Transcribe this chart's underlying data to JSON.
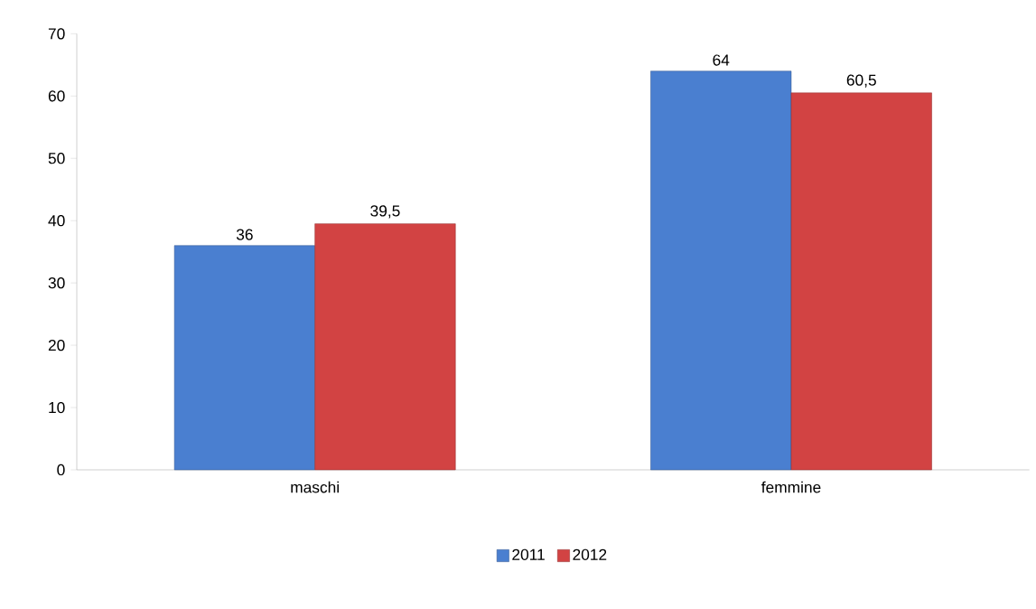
{
  "chart_data": {
    "type": "bar",
    "categories": [
      "maschi",
      "femmine"
    ],
    "series": [
      {
        "name": "2011",
        "color": "#4a7fd0",
        "values": [
          36,
          64
        ],
        "value_labels": [
          "36",
          "64"
        ]
      },
      {
        "name": "2012",
        "color": "#d24343",
        "values": [
          39.5,
          60.5
        ],
        "value_labels": [
          "39,5",
          "60,5"
        ]
      }
    ],
    "ylim": [
      0,
      70
    ],
    "yticks": [
      0,
      10,
      20,
      30,
      40,
      50,
      60,
      70
    ],
    "legend": "bottom"
  }
}
